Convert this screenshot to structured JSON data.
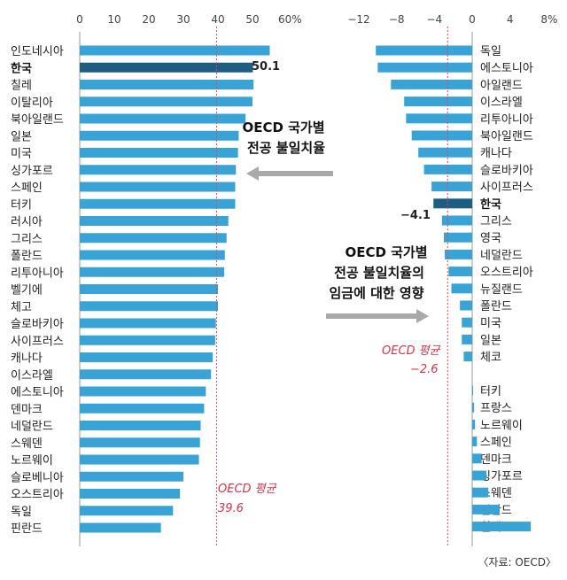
{
  "colors": {
    "bar": "#3aa3d5",
    "highlight": "#1d5d82",
    "average": "#e0475b",
    "arrow": "#a9a9a9"
  },
  "source": "〈자료: OECD〉",
  "chart_data": [
    {
      "type": "bar",
      "orientation": "horizontal",
      "unit": "%",
      "axis_ticks": [
        "0",
        "10",
        "20",
        "30",
        "40",
        "50",
        "60%"
      ],
      "xlim": [
        0,
        60
      ],
      "annotation": [
        "OECD 국가별",
        "전공 불일치율"
      ],
      "average": {
        "label": "OECD 평균",
        "value_label": "39.6",
        "value": 39.6
      },
      "highlight": "한국",
      "highlight_value_label": "50.1",
      "categories": [
        "인도네시아",
        "한국",
        "칠레",
        "이탈리아",
        "북아일랜드",
        "일본",
        "미국",
        "싱가포르",
        "스페인",
        "터키",
        "러시아",
        "그리스",
        "폴란드",
        "리투아니아",
        "벨기에",
        "체고",
        "슬로바키아",
        "사이프러스",
        "캐나다",
        "이스라엘",
        "에스토니아",
        "덴마크",
        "네덜란드",
        "스웨덴",
        "노르웨이",
        "슬로베니아",
        "오스트리아",
        "독일",
        "핀란드"
      ],
      "values": [
        55,
        50.1,
        50.3,
        50,
        48,
        46,
        45.8,
        45.2,
        45,
        45,
        43,
        42.5,
        42,
        41.8,
        40,
        40,
        39.4,
        39.2,
        38.5,
        38,
        36.5,
        36,
        35,
        34.8,
        34.5,
        30,
        29,
        27,
        23.5
      ]
    },
    {
      "type": "bar",
      "orientation": "horizontal",
      "unit": "%",
      "axis_ticks": [
        "−12",
        "−8",
        "−4",
        "0",
        "4",
        "8%"
      ],
      "xlim": [
        -13.5,
        9
      ],
      "annotation": [
        "OECD 국가별",
        "전공 불일치율의",
        "임금에 대한 영향"
      ],
      "average": {
        "label": "OECD 평균",
        "value_label": "−2.6",
        "value": -2.6
      },
      "highlight": "한국",
      "highlight_value_label": "−4.1",
      "categories": [
        "독일",
        "에스토니아",
        "아일랜드",
        "이스라엘",
        "리투아니아",
        "북아일랜드",
        "캐나다",
        "슬로바키아",
        "사이프러스",
        "한국",
        "그리스",
        "영국",
        "네덜란드",
        "오스트리아",
        "뉴질랜드",
        "폴란드",
        "미국",
        "일본",
        "체코",
        "터키",
        "프랑스",
        "노르웨이",
        "스페인",
        "덴마크",
        "싱가포르",
        "스웨덴",
        "핀란드",
        "칠레"
      ],
      "values": [
        -10.2,
        -10,
        -8.6,
        -7.2,
        -7,
        -6.4,
        -5.7,
        -5.1,
        -4.3,
        -4.1,
        -3.2,
        -3,
        -2.9,
        -2.5,
        -2.2,
        -1.3,
        -1.1,
        -1.1,
        -0.9,
        0.1,
        0.2,
        0.3,
        0.5,
        1,
        1.5,
        1.7,
        2.9,
        6.2
      ]
    }
  ]
}
